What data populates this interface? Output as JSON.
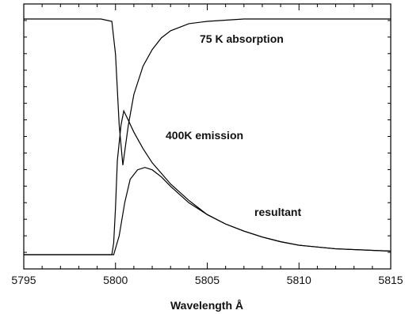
{
  "chart_data": {
    "type": "line",
    "xlabel": "Wavelength Å",
    "ylabel": "",
    "xlim": [
      5795,
      5815
    ],
    "ylim": [
      0,
      1
    ],
    "x_ticks": [
      "5795",
      "5800",
      "5805",
      "5810",
      "5815"
    ],
    "y_minor_ticks": 16,
    "grid": false,
    "annotations": [
      "75 K absorption",
      "400K emission",
      "resultant"
    ],
    "series": [
      {
        "name": "75 K absorption",
        "x": [
          5795,
          5799.2,
          5799.8,
          5800.0,
          5800.2,
          5800.4,
          5800.7,
          5801.0,
          5801.5,
          5802,
          5802.5,
          5803,
          5804,
          5805,
          5807,
          5810,
          5815
        ],
        "y": [
          1.0,
          1.0,
          0.99,
          0.85,
          0.55,
          0.38,
          0.55,
          0.68,
          0.8,
          0.87,
          0.92,
          0.95,
          0.98,
          0.99,
          1.0,
          1.0,
          1.0
        ]
      },
      {
        "name": "400K emission",
        "x": [
          5795,
          5799.8,
          5799.9,
          5800.0,
          5800.1,
          5800.3,
          5800.45,
          5800.7,
          5801.0,
          5801.5,
          5802,
          5803,
          5804,
          5805,
          5806,
          5807,
          5808,
          5809,
          5810,
          5812,
          5815
        ],
        "y": [
          0.0,
          0.0,
          0.05,
          0.2,
          0.4,
          0.55,
          0.61,
          0.57,
          0.52,
          0.45,
          0.39,
          0.3,
          0.23,
          0.17,
          0.13,
          0.1,
          0.075,
          0.055,
          0.04,
          0.025,
          0.015
        ]
      },
      {
        "name": "resultant",
        "x": [
          5795,
          5799.9,
          5800.2,
          5800.5,
          5800.8,
          5801.2,
          5801.6,
          5802,
          5802.5,
          5803,
          5804,
          5805,
          5806,
          5807,
          5808,
          5809,
          5810,
          5812,
          5815
        ],
        "y": [
          0.0,
          0.0,
          0.08,
          0.22,
          0.32,
          0.36,
          0.37,
          0.36,
          0.33,
          0.29,
          0.22,
          0.17,
          0.13,
          0.1,
          0.075,
          0.055,
          0.04,
          0.025,
          0.015
        ]
      }
    ]
  }
}
